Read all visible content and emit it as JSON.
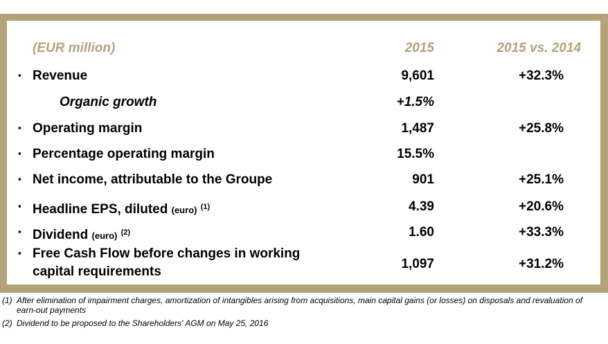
{
  "header": {
    "label": "(EUR million)",
    "col_current": "2015",
    "col_change": "2015 vs. 2014"
  },
  "rows": [
    {
      "bullet": "▪",
      "label": "Revenue",
      "value": "9,601",
      "change": "+32.3%"
    },
    {
      "bullet": "",
      "label": "Organic growth",
      "value": "+1.5%",
      "change": ""
    },
    {
      "bullet": "▪",
      "label": "Operating margin",
      "value": "1,487",
      "change": "+25.8%"
    },
    {
      "bullet": "▪",
      "label": "Percentage operating margin",
      "value": "15.5%",
      "change": ""
    },
    {
      "bullet": "▪",
      "label": "Net income, attributable to the Groupe",
      "value": "901",
      "change": "+25.1%"
    },
    {
      "bullet": "▪",
      "label": "Headline EPS, diluted",
      "unit": "(euro)",
      "note": "(1)",
      "value": "4.39",
      "change": "+20.6%"
    },
    {
      "bullet": "▪",
      "label": "Dividend",
      "unit": "(euro)",
      "note": "(2)",
      "value": "1.60",
      "change": "+33.3%"
    },
    {
      "bullet": "▪",
      "label_line1": "Free Cash Flow before changes in working",
      "label_line2": "capital requirements",
      "value": "1,097",
      "change": "+31.2%"
    }
  ],
  "footnotes": [
    {
      "num": "(1)",
      "text": "After elimination of impairment charges, amortization of intangibles arising from acquisitions, main capital gains (or losses) on disposals and revaluation of earn-out payments"
    },
    {
      "num": "(2)",
      "text": "Dividend to be proposed to the Shareholders' AGM on May 25, 2016"
    }
  ],
  "colors": {
    "frame": "#b4a27a",
    "header_text": "#b4a27a",
    "body_text": "#000000"
  }
}
